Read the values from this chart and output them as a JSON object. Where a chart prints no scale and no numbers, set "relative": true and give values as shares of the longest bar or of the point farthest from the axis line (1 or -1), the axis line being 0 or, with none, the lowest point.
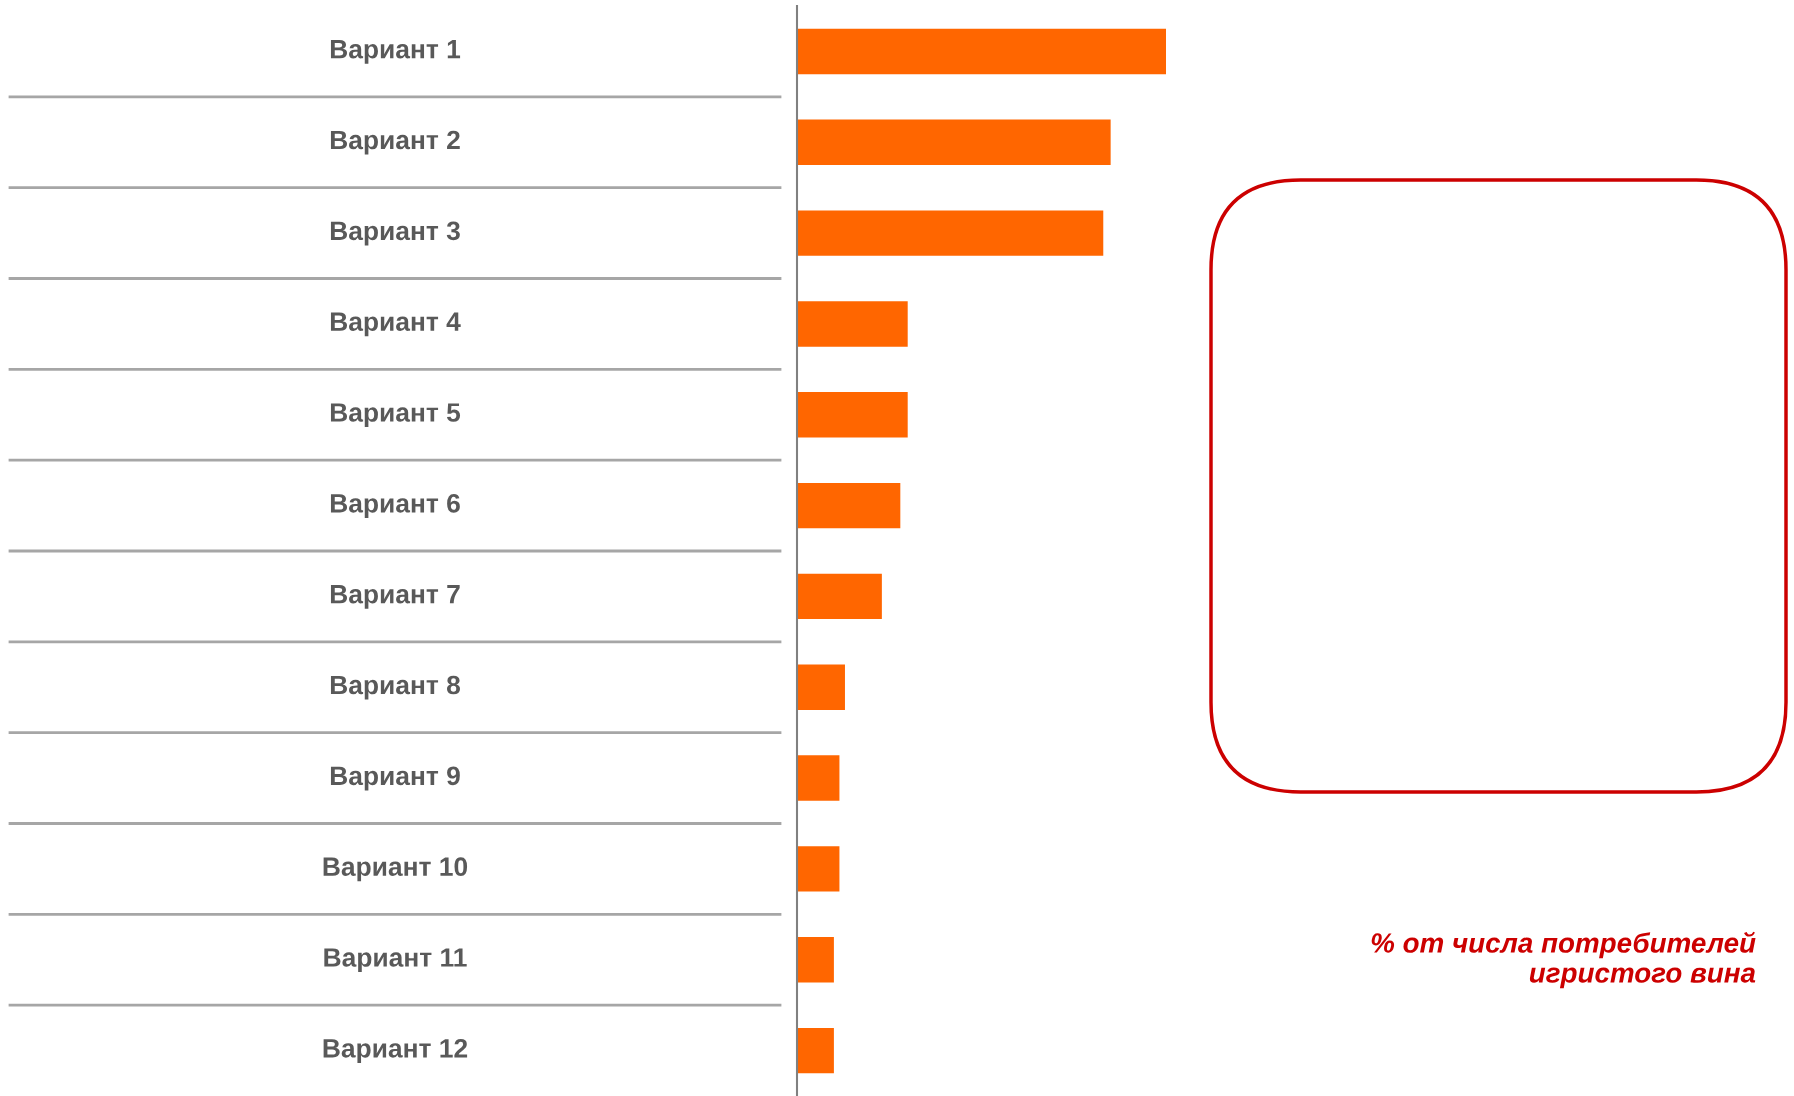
{
  "chart_data": {
    "type": "bar",
    "orientation": "horizontal",
    "relative": true,
    "categories": [
      "Вариант 1",
      "Вариант 2",
      "Вариант 3",
      "Вариант 4",
      "Вариант 5",
      "Вариант 6",
      "Вариант 7",
      "Вариант 8",
      "Вариант 9",
      "Вариант 10",
      "Вариант 11",
      "Вариант 12"
    ],
    "values": [
      1,
      0.85,
      0.83,
      0.3,
      0.3,
      0.28,
      0.23,
      0.13,
      0.115,
      0.115,
      0.1,
      0.1
    ],
    "color": "#ff6600",
    "annotations": [
      "% от числа потребителей\nигристого вина"
    ]
  }
}
